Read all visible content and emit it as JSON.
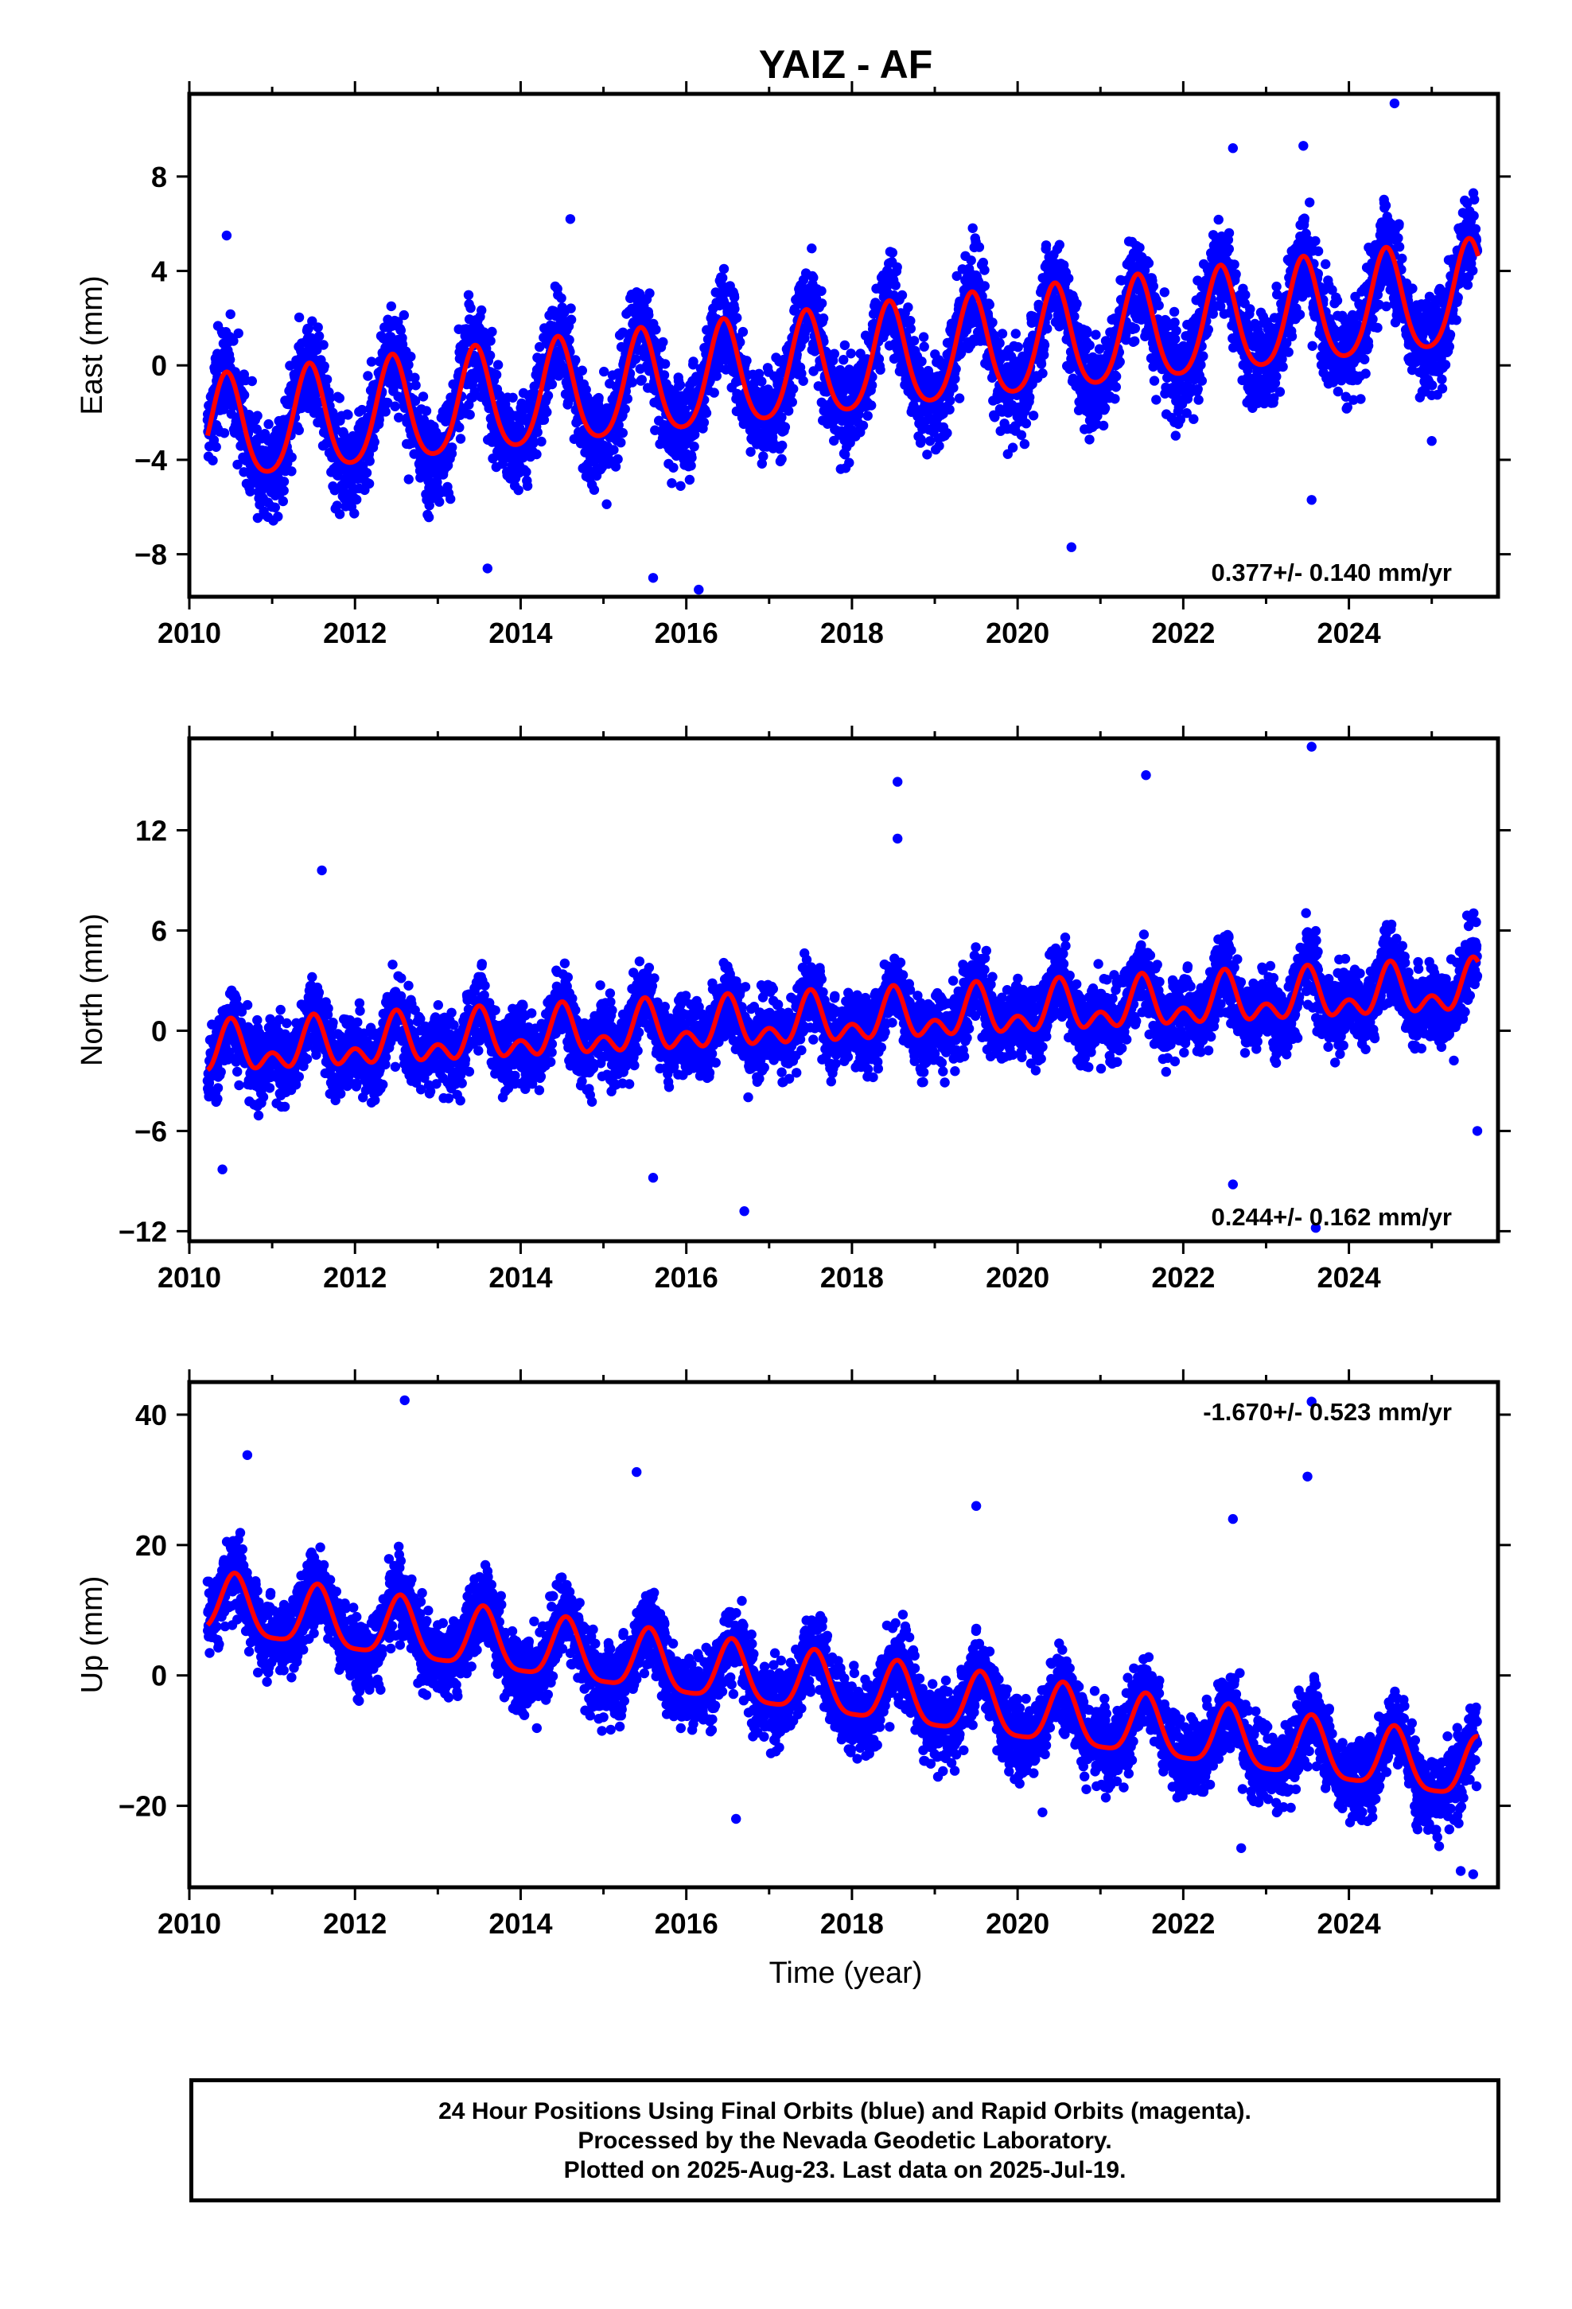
{
  "title": "YAIZ - AF",
  "x_axis": {
    "label": "Time (year)",
    "range": [
      2010,
      2025.8
    ],
    "ticks": [
      "2010",
      "2012",
      "2014",
      "2016",
      "2018",
      "2020",
      "2022",
      "2024"
    ]
  },
  "chart_data": [
    {
      "type": "scatter",
      "component": "East",
      "ylabel": "East (mm)",
      "ylim": [
        -9.8,
        11.5
      ],
      "yticks": [
        8,
        4,
        0,
        -4,
        -8
      ],
      "ytick_labels": [
        "8",
        "4",
        "0",
        "−4",
        "−8"
      ],
      "rate_label": "0.377+/- 0.140 mm/yr",
      "rate_position": "bottom-right",
      "trend": {
        "offset": -2.9,
        "slope": 0.377,
        "annual_amplitude": 2.2,
        "semiannual_amplitude": 0.35,
        "peak_phase": 0.45
      },
      "scatter_spread": 1.45,
      "outliers": [
        [
          2010.45,
          5.5
        ],
        [
          2013.6,
          -8.6
        ],
        [
          2014.6,
          6.2
        ],
        [
          2015.6,
          -9.0
        ],
        [
          2016.15,
          -9.5
        ],
        [
          2020.65,
          -7.7
        ],
        [
          2022.6,
          9.2
        ],
        [
          2023.45,
          9.3
        ],
        [
          2023.55,
          -5.7
        ],
        [
          2024.55,
          11.1
        ],
        [
          2025.0,
          -3.2
        ]
      ]
    },
    {
      "type": "scatter",
      "component": "North",
      "ylabel": "North (mm)",
      "ylim": [
        -12.6,
        17.5
      ],
      "yticks": [
        12,
        6,
        0,
        -6,
        -12
      ],
      "ytick_labels": [
        "12",
        "6",
        "0",
        "−6",
        "−12"
      ],
      "rate_label": "0.244+/- 0.162 mm/yr",
      "rate_position": "bottom-right",
      "trend": {
        "offset": -1.3,
        "slope": 0.244,
        "annual_amplitude": 1.1,
        "semiannual_amplitude": 0.9,
        "peak_phase": 0.5
      },
      "scatter_spread": 1.6,
      "outliers": [
        [
          2010.4,
          -8.3
        ],
        [
          2011.6,
          9.6
        ],
        [
          2015.6,
          -8.8
        ],
        [
          2016.7,
          -10.8
        ],
        [
          2018.55,
          14.9
        ],
        [
          2018.55,
          11.5
        ],
        [
          2021.55,
          15.3
        ],
        [
          2022.6,
          -9.2
        ],
        [
          2023.55,
          17.0
        ],
        [
          2023.6,
          -11.8
        ],
        [
          2025.55,
          -6.0
        ]
      ]
    },
    {
      "type": "scatter",
      "component": "Up",
      "ylabel": "Up (mm)",
      "ylim": [
        -32.5,
        45.0
      ],
      "yticks": [
        40,
        20,
        0,
        -20
      ],
      "ytick_labels": [
        "40",
        "20",
        "0",
        "−20"
      ],
      "rate_label": "-1.670+/- 0.523 mm/yr",
      "rate_position": "top-right",
      "trend": {
        "offset": 10.5,
        "slope": -1.67,
        "annual_amplitude": 4.6,
        "semiannual_amplitude": 1.1,
        "peak_phase": 0.55
      },
      "scatter_spread": 4.2,
      "outliers": [
        [
          2010.7,
          33.8
        ],
        [
          2012.6,
          42.2
        ],
        [
          2015.4,
          31.2
        ],
        [
          2016.6,
          -22.0
        ],
        [
          2019.5,
          26.0
        ],
        [
          2020.3,
          -21.0
        ],
        [
          2022.6,
          24.0
        ],
        [
          2022.7,
          -26.5
        ],
        [
          2023.5,
          30.5
        ],
        [
          2023.55,
          42.0
        ],
        [
          2025.35,
          -30.0
        ],
        [
          2025.5,
          -30.5
        ]
      ]
    }
  ],
  "colors": {
    "final_orbits": "#0000ff",
    "rapid_orbits": "#ff00ff",
    "model_fit": "#ff0000",
    "frame": "#000000"
  },
  "caption": {
    "line1": "24 Hour Positions Using Final Orbits (blue) and Rapid Orbits (magenta).",
    "line2": "Processed by the Nevada Geodetic Laboratory.",
    "line3": "Plotted on 2025-Aug-23. Last data on 2025-Jul-19."
  }
}
